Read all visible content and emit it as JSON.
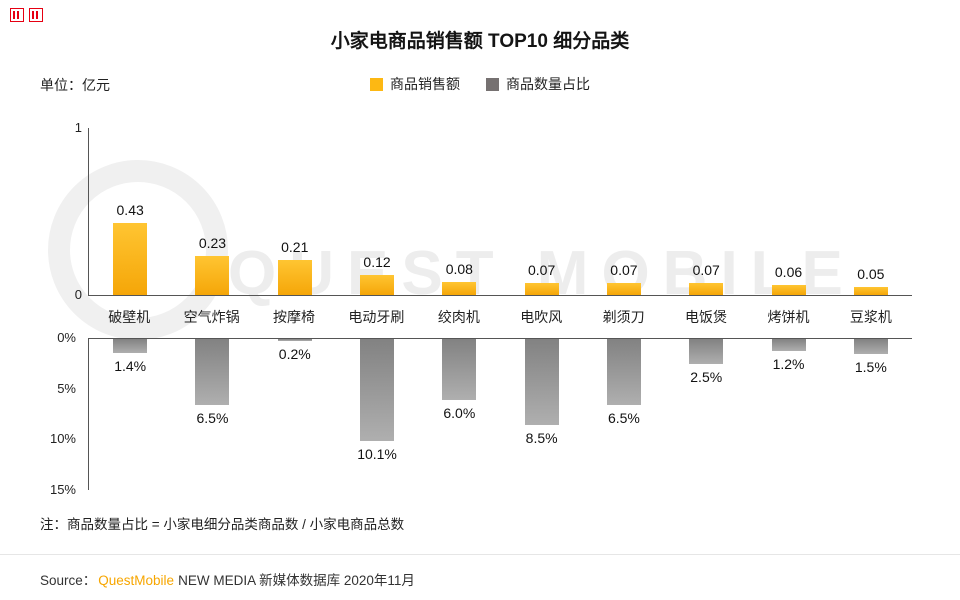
{
  "page": {
    "title": "小家电商品销售额 TOP10 细分品类",
    "unit_label": "单位：亿元",
    "watermark": "QUEST MOBILE",
    "note": "注：商品数量占比 = 小家电细分品类商品数 / 小家电商品总数",
    "source": {
      "prefix": "Source：",
      "brand": "QuestMobile",
      "suffix": "NEW MEDIA 新媒体数据库 2020年11月",
      "brand_color": "#F7A600"
    }
  },
  "legend": {
    "items": [
      {
        "label": "商品销售额",
        "color": "#FDB813"
      },
      {
        "label": "商品数量占比",
        "color": "#767171"
      }
    ]
  },
  "chart_data": {
    "type": "bar",
    "title": "小家电商品销售额 TOP10 细分品类",
    "unit": "亿元",
    "grid": false,
    "legend_position": "top-center",
    "categories": [
      "破壁机",
      "空气炸锅",
      "按摩椅",
      "电动牙刷",
      "绞肉机",
      "电吹风",
      "剃须刀",
      "电饭煲",
      "烤饼机",
      "豆浆机"
    ],
    "series": [
      {
        "name": "商品销售额",
        "unit": "亿元",
        "orientation": "up",
        "values": [
          0.43,
          0.23,
          0.21,
          0.12,
          0.08,
          0.07,
          0.07,
          0.07,
          0.06,
          0.05
        ],
        "labels": [
          "0.43",
          "0.23",
          "0.21",
          "0.12",
          "0.08",
          "0.07",
          "0.07",
          "0.07",
          "0.06",
          "0.05"
        ],
        "axis_range": [
          0,
          1
        ],
        "axis_ticks": [
          "0",
          "1"
        ],
        "color": "#FFC532",
        "color_dark": "#F5A608"
      },
      {
        "name": "商品数量占比",
        "unit": "%",
        "orientation": "down",
        "values": [
          1.4,
          6.5,
          0.2,
          10.1,
          6.0,
          8.5,
          6.5,
          2.5,
          1.2,
          1.5
        ],
        "labels": [
          "1.4%",
          "6.5%",
          "0.2%",
          "10.1%",
          "6.0%",
          "8.5%",
          "6.5%",
          "2.5%",
          "1.2%",
          "1.5%"
        ],
        "axis_range": [
          0,
          15
        ],
        "axis_ticks": [
          "0%",
          "5%",
          "10%",
          "15%"
        ],
        "color": "#828282",
        "color_light": "#AFAFAF"
      }
    ]
  }
}
